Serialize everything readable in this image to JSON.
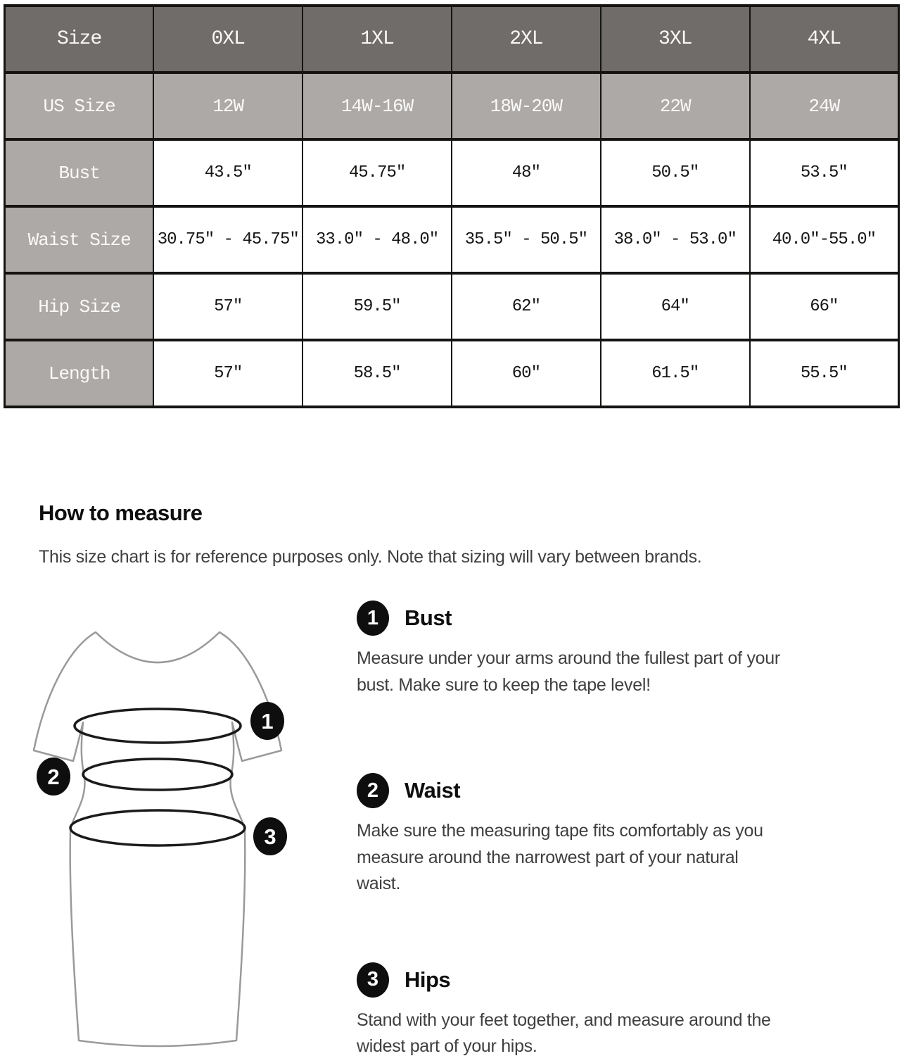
{
  "table": {
    "columns": [
      "Size",
      "0XL",
      "1XL",
      "2XL",
      "3XL",
      "4XL"
    ],
    "rows": [
      {
        "label": "US Size",
        "values": [
          "12W",
          "14W-16W",
          "18W-20W",
          "22W",
          "24W"
        ]
      },
      {
        "label": "Bust",
        "values": [
          "43.5″",
          "45.75″",
          "48″",
          "50.5″",
          "53.5″"
        ]
      },
      {
        "label": "Waist Size",
        "values": [
          "30.75″ - 45.75″",
          "33.0″ - 48.0″",
          "35.5″ - 50.5″",
          "38.0″ - 53.0″",
          "40.0″-55.0″"
        ]
      },
      {
        "label": "Hip Size",
        "values": [
          "57″",
          "59.5″",
          "62″",
          "64″",
          "66″"
        ]
      },
      {
        "label": "Length",
        "values": [
          "57″",
          "58.5″",
          "60″",
          "61.5″",
          "55.5″"
        ]
      }
    ]
  },
  "how_to": {
    "heading": "How to measure",
    "note": "This size chart is for reference purposes only. Note that sizing will vary between brands."
  },
  "sections": [
    {
      "num": "1",
      "title": "Bust",
      "desc": "Measure under your arms around the fullest part of your\nbust. Make sure to keep the tape level!"
    },
    {
      "num": "2",
      "title": "Waist",
      "desc": "Make sure the measuring tape fits comfortably as you\nmeasure around the narrowest part of your natural\nwaist."
    },
    {
      "num": "3",
      "title": "Hips",
      "desc": "Stand with your feet together, and measure around the\nwidest part of your hips."
    }
  ],
  "colors": {
    "header_bg": "#6f6c6a",
    "label_bg": "#aca9a7",
    "table_border": "#151413",
    "badge_bg": "#0e0e0e",
    "body_text": "#3f3f3f"
  }
}
